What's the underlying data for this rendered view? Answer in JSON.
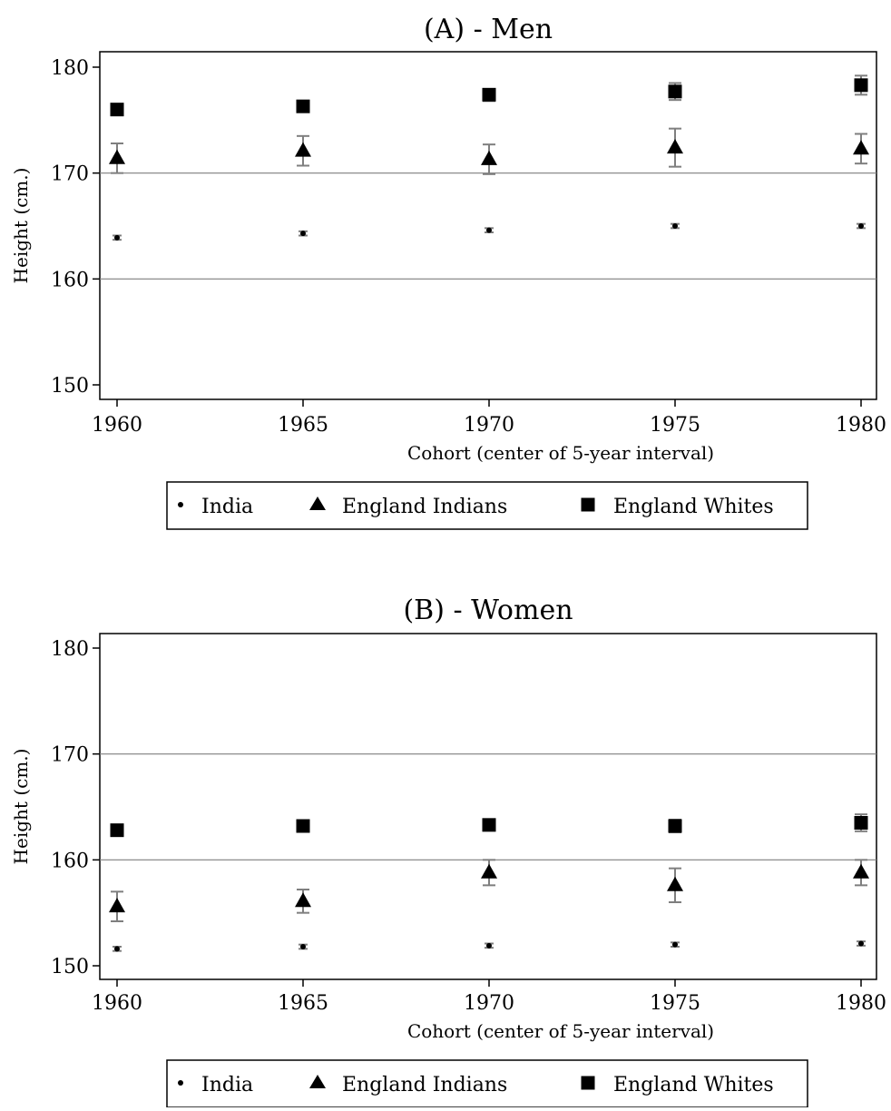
{
  "chart_data": [
    {
      "type": "scatter",
      "title": "(A) - Men",
      "xlabel": "Cohort (center of 5-year interval)",
      "ylabel": "Height (cm.)",
      "x": [
        1960,
        1965,
        1970,
        1975,
        1980
      ],
      "xlim": [
        1960,
        1980
      ],
      "ylim": [
        150,
        180
      ],
      "yticks": [
        150,
        160,
        170,
        180
      ],
      "xticks": [
        1960,
        1965,
        1970,
        1975,
        1980
      ],
      "gridlines_y": [
        160,
        170
      ],
      "error_bars": true,
      "legend_position": "bottom",
      "series": [
        {
          "name": "India",
          "marker": "circle",
          "values": [
            163.9,
            164.3,
            164.6,
            165.0,
            165.0
          ],
          "ci_low": [
            163.7,
            164.1,
            164.4,
            164.8,
            164.8
          ],
          "ci_high": [
            164.1,
            164.5,
            164.8,
            165.2,
            165.2
          ]
        },
        {
          "name": "England Indians",
          "marker": "triangle",
          "values": [
            171.4,
            172.1,
            171.3,
            172.4,
            172.3
          ],
          "ci_low": [
            170.0,
            170.7,
            169.9,
            170.6,
            170.9
          ],
          "ci_high": [
            172.8,
            173.5,
            172.7,
            174.2,
            173.7
          ]
        },
        {
          "name": "England Whites",
          "marker": "square",
          "values": [
            176.0,
            176.3,
            177.4,
            177.7,
            178.3
          ],
          "ci_low": [
            175.5,
            175.8,
            176.8,
            176.9,
            177.4
          ],
          "ci_high": [
            176.5,
            176.8,
            177.9,
            178.5,
            179.2
          ]
        }
      ]
    },
    {
      "type": "scatter",
      "title": "(B) - Women",
      "xlabel": "Cohort (center of 5-year interval)",
      "ylabel": "Height (cm.)",
      "x": [
        1960,
        1965,
        1970,
        1975,
        1980
      ],
      "xlim": [
        1960,
        1980
      ],
      "ylim": [
        150,
        180
      ],
      "yticks": [
        150,
        160,
        170,
        180
      ],
      "xticks": [
        1960,
        1965,
        1970,
        1975,
        1980
      ],
      "gridlines_y": [
        160,
        170
      ],
      "error_bars": true,
      "legend_position": "bottom",
      "series": [
        {
          "name": "India",
          "marker": "circle",
          "values": [
            151.6,
            151.8,
            151.9,
            152.0,
            152.1
          ],
          "ci_low": [
            151.4,
            151.6,
            151.7,
            151.8,
            151.9
          ],
          "ci_high": [
            151.8,
            152.0,
            152.1,
            152.2,
            152.3
          ]
        },
        {
          "name": "England Indians",
          "marker": "triangle",
          "values": [
            155.6,
            156.1,
            158.8,
            157.6,
            158.8
          ],
          "ci_low": [
            154.2,
            155.0,
            157.6,
            156.0,
            157.6
          ],
          "ci_high": [
            157.0,
            157.2,
            160.0,
            159.2,
            160.0
          ]
        },
        {
          "name": "England Whites",
          "marker": "square",
          "values": [
            162.8,
            163.2,
            163.3,
            163.2,
            163.5
          ],
          "ci_low": [
            162.4,
            162.8,
            162.9,
            162.6,
            162.7
          ],
          "ci_high": [
            163.2,
            163.6,
            163.7,
            163.8,
            164.3
          ]
        }
      ]
    }
  ],
  "colors": {
    "marker": "#000000",
    "error_bar": "#7f7f7f",
    "gridline": "#7f7f7f",
    "axis": "#000000"
  }
}
